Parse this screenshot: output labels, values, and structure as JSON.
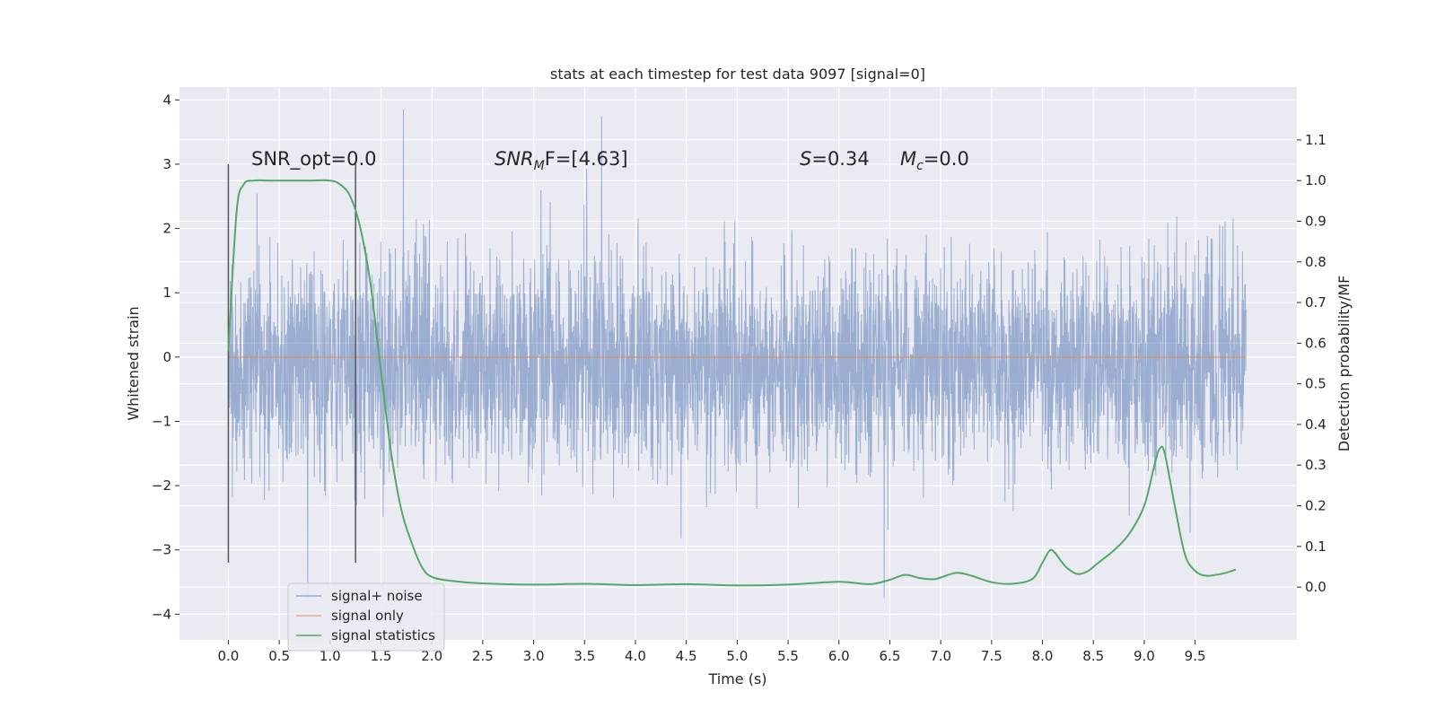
{
  "chart_data": {
    "type": "line",
    "title": "stats at each timestep for test data 9097 [signal=0]",
    "xlabel": "Time (s)",
    "ylabel": "Whitened strain",
    "ylabel_right": "Detection probability/MF",
    "xlim": [
      -0.48,
      10.5
    ],
    "ylim": [
      -4.4,
      4.2
    ],
    "ylim_right": [
      -0.13,
      1.23
    ],
    "x_ticks": [
      "0.0",
      "0.5",
      "1.0",
      "1.5",
      "2.0",
      "2.5",
      "3.0",
      "3.5",
      "4.0",
      "4.5",
      "5.0",
      "5.5",
      "6.0",
      "6.5",
      "7.0",
      "7.5",
      "8.0",
      "8.5",
      "9.0",
      "9.5"
    ],
    "y_ticks": [
      "4",
      "3",
      "2",
      "1",
      "0",
      "−1",
      "−2",
      "−3",
      "−4"
    ],
    "y_right_ticks": [
      "1.1",
      "1.0",
      "0.9",
      "0.8",
      "0.7",
      "0.6",
      "0.5",
      "0.4",
      "0.3",
      "0.2",
      "0.1",
      "0.0"
    ],
    "grid": true,
    "legend_position": "lower-left",
    "colors": {
      "plot_bg": "#eaeaf2",
      "noise": "#4c72b0",
      "signal": "#dd8452",
      "stats": "#55a868",
      "marker": "#555555"
    },
    "annotations": {
      "snr_opt": "SNR_opt=0.0",
      "snr_mf_base": "SNR",
      "snr_mf_sub": "M",
      "snr_mf_rest": "F=[4.63]",
      "s_name": "S",
      "s_value": "=0.34",
      "mc_name": "M",
      "mc_sub": "c",
      "mc_value": "=0.0"
    },
    "vertical_markers": [
      {
        "x": 0.0,
        "y_range": [
          -3.2,
          3.0
        ]
      },
      {
        "x": 1.25,
        "y_range": [
          -3.2,
          3.0
        ]
      }
    ],
    "series": [
      {
        "name": "signal+ noise",
        "kind": "whitened-strain-noise",
        "x_range": [
          0.0,
          10.0
        ],
        "typical_band": [
          -1.4,
          1.2
        ],
        "max": 3.85,
        "min": -3.75
      },
      {
        "name": "signal only",
        "kind": "flat",
        "x": [
          0.0,
          10.0
        ],
        "y": [
          0.0,
          0.0
        ]
      },
      {
        "name": "signal statistics",
        "axis": "right",
        "x": [
          0.0,
          0.08,
          0.15,
          0.25,
          0.4,
          0.6,
          0.8,
          1.0,
          1.1,
          1.2,
          1.3,
          1.4,
          1.5,
          1.6,
          1.7,
          1.8,
          1.9,
          2.0,
          2.2,
          2.5,
          3.0,
          3.5,
          4.0,
          4.5,
          5.0,
          5.5,
          6.0,
          6.3,
          6.5,
          6.65,
          6.8,
          6.95,
          7.15,
          7.3,
          7.5,
          7.7,
          7.9,
          8.0,
          8.07,
          8.12,
          8.18,
          8.25,
          8.35,
          8.45,
          8.55,
          8.7,
          8.85,
          9.0,
          9.1,
          9.15,
          9.2,
          9.3,
          9.4,
          9.5,
          9.6,
          9.7,
          9.8,
          9.9
        ],
        "y": [
          0.58,
          0.92,
          0.99,
          1.0,
          1.0,
          1.0,
          1.0,
          1.0,
          0.99,
          0.96,
          0.88,
          0.74,
          0.53,
          0.33,
          0.19,
          0.11,
          0.05,
          0.025,
          0.015,
          0.009,
          0.006,
          0.008,
          0.005,
          0.007,
          0.004,
          0.006,
          0.013,
          0.007,
          0.018,
          0.03,
          0.022,
          0.02,
          0.035,
          0.028,
          0.012,
          0.008,
          0.02,
          0.06,
          0.09,
          0.085,
          0.065,
          0.045,
          0.032,
          0.04,
          0.06,
          0.09,
          0.13,
          0.2,
          0.3,
          0.34,
          0.33,
          0.2,
          0.08,
          0.04,
          0.028,
          0.03,
          0.035,
          0.043
        ]
      }
    ]
  },
  "legend": {
    "items": [
      "signal+ noise",
      "signal only",
      "signal statistics"
    ]
  }
}
